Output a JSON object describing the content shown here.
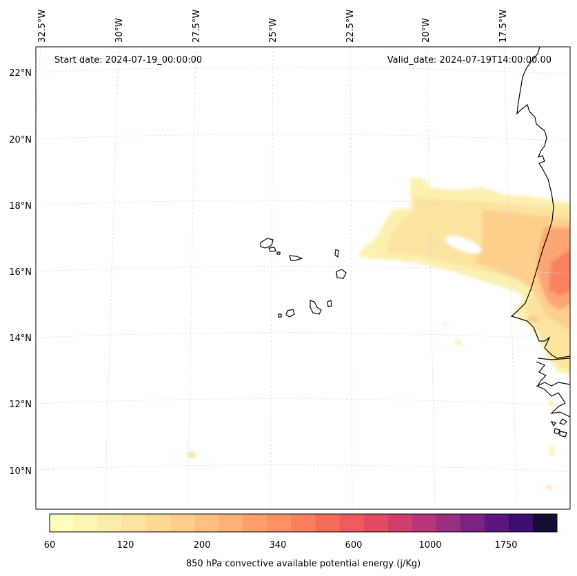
{
  "header": {
    "start_date": "Start date: 2024-07-19_00:00:00",
    "valid_date": "Valid_date: 2024-07-19T14:00:00.00"
  },
  "longitude_labels": [
    "32.5°W",
    "30°W",
    "27.5°W",
    "25°W",
    "22.5°W",
    "20°W",
    "17.5°W"
  ],
  "latitude_labels": [
    "22°N",
    "20°N",
    "18°N",
    "16°N",
    "14°N",
    "12°N",
    "10°N"
  ],
  "colorbar": {
    "title": "850 hPa convective available potential energy (j/Kg)",
    "tick_labels": [
      "60",
      "120",
      "200",
      "340",
      "600",
      "1000",
      "1750"
    ],
    "colors": [
      "#fcfdbf",
      "#fcf4b5",
      "#fcecab",
      "#fde3a1",
      "#fdd996",
      "#fecf8b",
      "#febf80",
      "#feb077",
      "#fda06e",
      "#fc9065",
      "#fa7f5e",
      "#f66c5c",
      "#ef5a5e",
      "#e34a64",
      "#cf3f6e",
      "#b63679",
      "#9a2e7f",
      "#7c2382",
      "#5c167f",
      "#3b0f70",
      "#140e36"
    ]
  },
  "map": {
    "projection": "Lambert conformal",
    "extent_lon": [
      "32.5°W",
      "15°W"
    ],
    "extent_lat": [
      "9°N",
      "22.5°N"
    ],
    "grid": true,
    "islands": "Cape Verde",
    "coast": "West Africa (Mauritania, Senegal, Gambia, Guinea-Bissau)"
  }
}
